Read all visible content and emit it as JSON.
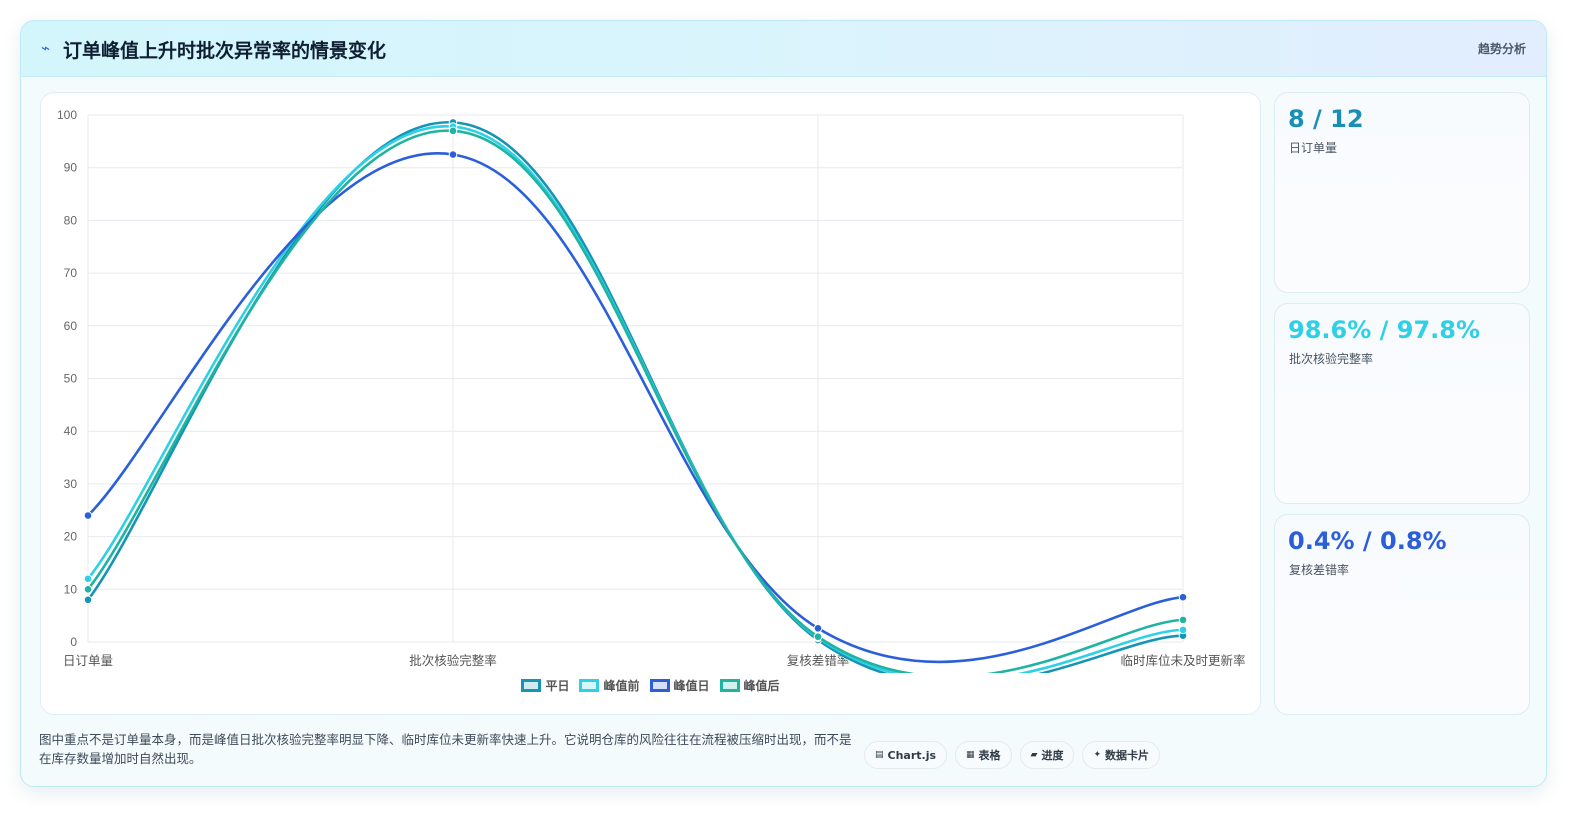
{
  "header": {
    "title": "订单峰值上升时批次异常率的情景变化",
    "icon": "bolt-icon",
    "tag": "趋势分析"
  },
  "colors": {
    "series_1": "#1694b5",
    "series_2": "#2fd0e6",
    "series_3": "#2b5fd9",
    "series_4": "#1fb3a2"
  },
  "chart_data": {
    "type": "line",
    "categories": [
      "日订单量",
      "批次核验完整率",
      "复核差错率",
      "临时库位未及时更新率"
    ],
    "ylim": [
      0,
      100
    ],
    "yticks": [
      0,
      10,
      20,
      30,
      40,
      50,
      60,
      70,
      80,
      90,
      100
    ],
    "grid": true,
    "legend_position": "bottom",
    "series": [
      {
        "name": "平日",
        "values": [
          8,
          98.6,
          0.4,
          1.2
        ]
      },
      {
        "name": "峰值前",
        "values": [
          12,
          97.8,
          0.8,
          2.3
        ]
      },
      {
        "name": "峰值日",
        "values": [
          24,
          92.5,
          2.6,
          8.5
        ]
      },
      {
        "name": "峰值后",
        "values": [
          10,
          97,
          1.0,
          4.2
        ]
      }
    ]
  },
  "stats": [
    {
      "value": "8 / 12",
      "label": "日订单量",
      "color": "#1a8fb3"
    },
    {
      "value": "98.6% / 97.8%",
      "label": "批次核验完整率",
      "color": "#2fd0e6"
    },
    {
      "value": "0.4% / 0.8%",
      "label": "复核差错率",
      "color": "#2b5fd9"
    }
  ],
  "footnote": "图中重点不是订单量本身，而是峰值日批次核验完整率明显下降、临时库位未更新率快速上升。它说明仓库的风险往往在流程被压缩时出现，而不是在库存数量增加时自然出现。",
  "chips": [
    {
      "icon": "chart-icon",
      "glyph": "▤",
      "label": "Chart.js"
    },
    {
      "icon": "table-icon",
      "glyph": "▦",
      "label": "表格"
    },
    {
      "icon": "progress-icon",
      "glyph": "▰",
      "label": "进度"
    },
    {
      "icon": "card-icon",
      "glyph": "✦",
      "label": "数据卡片"
    }
  ]
}
